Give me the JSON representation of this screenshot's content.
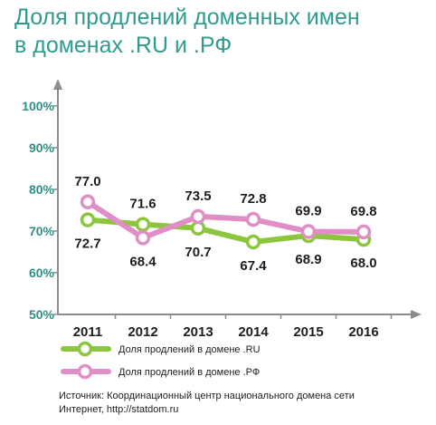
{
  "title": {
    "line1": "Доля продлений доменных имен",
    "line2": "в доменах .RU и .РФ"
  },
  "colors": {
    "title": "#2f9b8e",
    "ru": "#8cc63f",
    "rf": "#e08ec6",
    "axis": "#8c8c8c",
    "ytick": "#2f8f85"
  },
  "chart_data": {
    "type": "line",
    "x": [
      "2011",
      "2012",
      "2013",
      "2014",
      "2015",
      "2016"
    ],
    "ylim": [
      50,
      100
    ],
    "yticks": [
      "50%",
      "60%",
      "70%",
      "80%",
      "90%",
      "100%"
    ],
    "ytick_values": [
      50,
      60,
      70,
      80,
      90,
      100
    ],
    "grid": false,
    "legend_position": "bottom",
    "series": [
      {
        "name": "Доля продлений в домене .RU",
        "values": [
          72.7,
          71.6,
          70.7,
          67.4,
          68.9,
          68.0
        ],
        "labels": [
          "72.7",
          "71.6",
          "70.7",
          "67.4",
          "68.9",
          "68.0"
        ],
        "color": "#8cc63f"
      },
      {
        "name": "Доля продлений в домене .РФ",
        "values": [
          77.0,
          68.4,
          73.5,
          72.8,
          69.9,
          69.8
        ],
        "labels": [
          "77.0",
          "68.4",
          "73.5",
          "72.8",
          "69.9",
          "69.8"
        ],
        "color": "#e08ec6"
      }
    ]
  },
  "source": {
    "line1": "Источник: Координационный центр национального домена сети",
    "line2": "Интернет, http://statdom.ru"
  }
}
